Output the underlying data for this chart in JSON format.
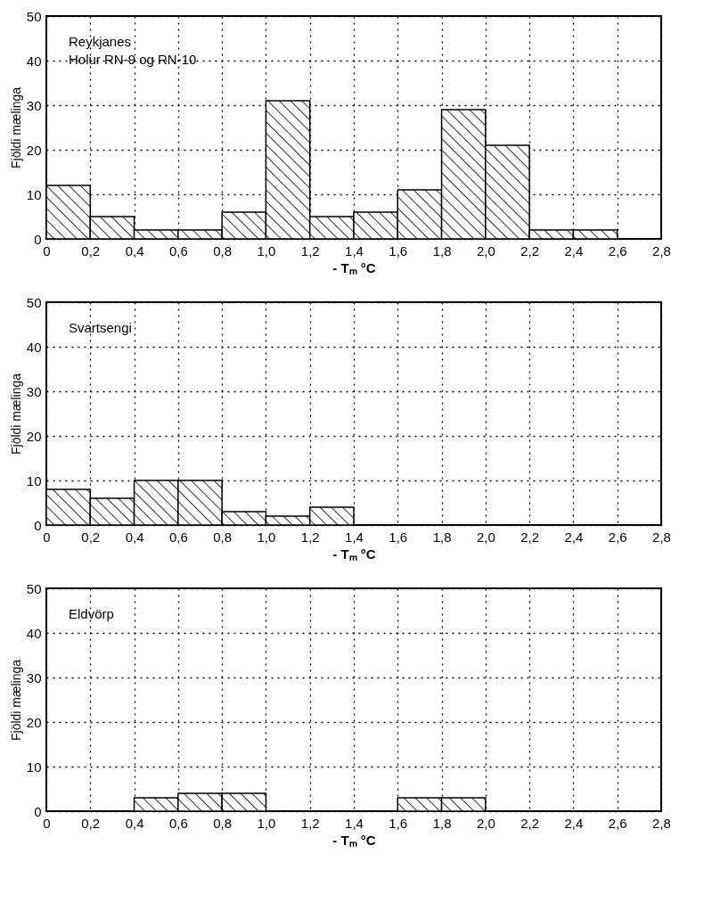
{
  "chart_data": [
    {
      "type": "histogram",
      "xlabel": "- Tₘ °C",
      "ylabel": "Fjöldi mælinga",
      "annotations": [
        "Reykjanes",
        "Holur RN-9 og RN-10"
      ],
      "bins": [
        0,
        0.2,
        0.4,
        0.6,
        0.8,
        1.0,
        1.2,
        1.4,
        1.6,
        1.8,
        2.0,
        2.2,
        2.4,
        2.6,
        2.8
      ],
      "values": [
        12,
        5,
        2,
        2,
        6,
        31,
        5,
        6,
        11,
        29,
        21,
        2,
        2,
        0
      ],
      "color": "#000000",
      "xlim": [
        0,
        2.8
      ],
      "xticks": [
        {
          "value": 0,
          "label": "0"
        },
        {
          "value": 0.2,
          "label": "0,2"
        },
        {
          "value": 0.4,
          "label": "0,4"
        },
        {
          "value": 0.6,
          "label": "0,6"
        },
        {
          "value": 0.8,
          "label": "0,8"
        },
        {
          "value": 1.0,
          "label": "1,0"
        },
        {
          "value": 1.2,
          "label": "1,2"
        },
        {
          "value": 1.4,
          "label": "1,4"
        },
        {
          "value": 1.6,
          "label": "1,6"
        },
        {
          "value": 1.8,
          "label": "1,8"
        },
        {
          "value": 2.0,
          "label": "2,0"
        },
        {
          "value": 2.2,
          "label": "2,2"
        },
        {
          "value": 2.4,
          "label": "2,4"
        },
        {
          "value": 2.6,
          "label": "2,6"
        },
        {
          "value": 2.8,
          "label": "2,8"
        }
      ],
      "ylim": [
        0,
        50
      ],
      "yticks": [
        0,
        10,
        20,
        30,
        40,
        50
      ],
      "grid": true
    },
    {
      "type": "histogram",
      "xlabel": "- Tₘ °C",
      "ylabel": "Fjöldi mælinga",
      "annotations": [
        "Svartsengi"
      ],
      "bins": [
        0,
        0.2,
        0.4,
        0.6,
        0.8,
        1.0,
        1.2,
        1.4,
        1.6,
        1.8,
        2.0,
        2.2,
        2.4,
        2.6,
        2.8
      ],
      "values": [
        8,
        6,
        10,
        10,
        3,
        2,
        4,
        0,
        0,
        0,
        0,
        0,
        0,
        0
      ],
      "color": "#000000",
      "xlim": [
        0,
        2.8
      ],
      "xticks": [
        {
          "value": 0,
          "label": "0"
        },
        {
          "value": 0.2,
          "label": "0,2"
        },
        {
          "value": 0.4,
          "label": "0,4"
        },
        {
          "value": 0.6,
          "label": "0,6"
        },
        {
          "value": 0.8,
          "label": "0,8"
        },
        {
          "value": 1.0,
          "label": "1,0"
        },
        {
          "value": 1.2,
          "label": "1,2"
        },
        {
          "value": 1.4,
          "label": "1,4"
        },
        {
          "value": 1.6,
          "label": "1,6"
        },
        {
          "value": 1.8,
          "label": "1,8"
        },
        {
          "value": 2.0,
          "label": "2,0"
        },
        {
          "value": 2.2,
          "label": "2,2"
        },
        {
          "value": 2.4,
          "label": "2,4"
        },
        {
          "value": 2.6,
          "label": "2,6"
        },
        {
          "value": 2.8,
          "label": "2,8"
        }
      ],
      "ylim": [
        0,
        50
      ],
      "yticks": [
        0,
        10,
        20,
        30,
        40,
        50
      ],
      "grid": true
    },
    {
      "type": "histogram",
      "xlabel": "- Tₘ °C",
      "ylabel": "Fjöldi mælinga",
      "annotations": [
        "Eldvörp"
      ],
      "bins": [
        0,
        0.2,
        0.4,
        0.6,
        0.8,
        1.0,
        1.2,
        1.4,
        1.6,
        1.8,
        2.0,
        2.2,
        2.4,
        2.6,
        2.8
      ],
      "values": [
        0,
        0,
        3,
        4,
        4,
        0,
        0,
        0,
        3,
        3,
        0,
        0,
        0,
        0
      ],
      "color": "#000000",
      "xlim": [
        0,
        2.8
      ],
      "xticks": [
        {
          "value": 0,
          "label": "0"
        },
        {
          "value": 0.2,
          "label": "0,2"
        },
        {
          "value": 0.4,
          "label": "0,4"
        },
        {
          "value": 0.6,
          "label": "0,6"
        },
        {
          "value": 0.8,
          "label": "0,8"
        },
        {
          "value": 1.0,
          "label": "1,0"
        },
        {
          "value": 1.2,
          "label": "1,2"
        },
        {
          "value": 1.4,
          "label": "1,4"
        },
        {
          "value": 1.6,
          "label": "1,6"
        },
        {
          "value": 1.8,
          "label": "1,8"
        },
        {
          "value": 2.0,
          "label": "2,0"
        },
        {
          "value": 2.2,
          "label": "2,2"
        },
        {
          "value": 2.4,
          "label": "2,4"
        },
        {
          "value": 2.6,
          "label": "2,6"
        },
        {
          "value": 2.8,
          "label": "2,8"
        }
      ],
      "ylim": [
        0,
        50
      ],
      "yticks": [
        0,
        10,
        20,
        30,
        40,
        50
      ],
      "grid": true
    }
  ]
}
